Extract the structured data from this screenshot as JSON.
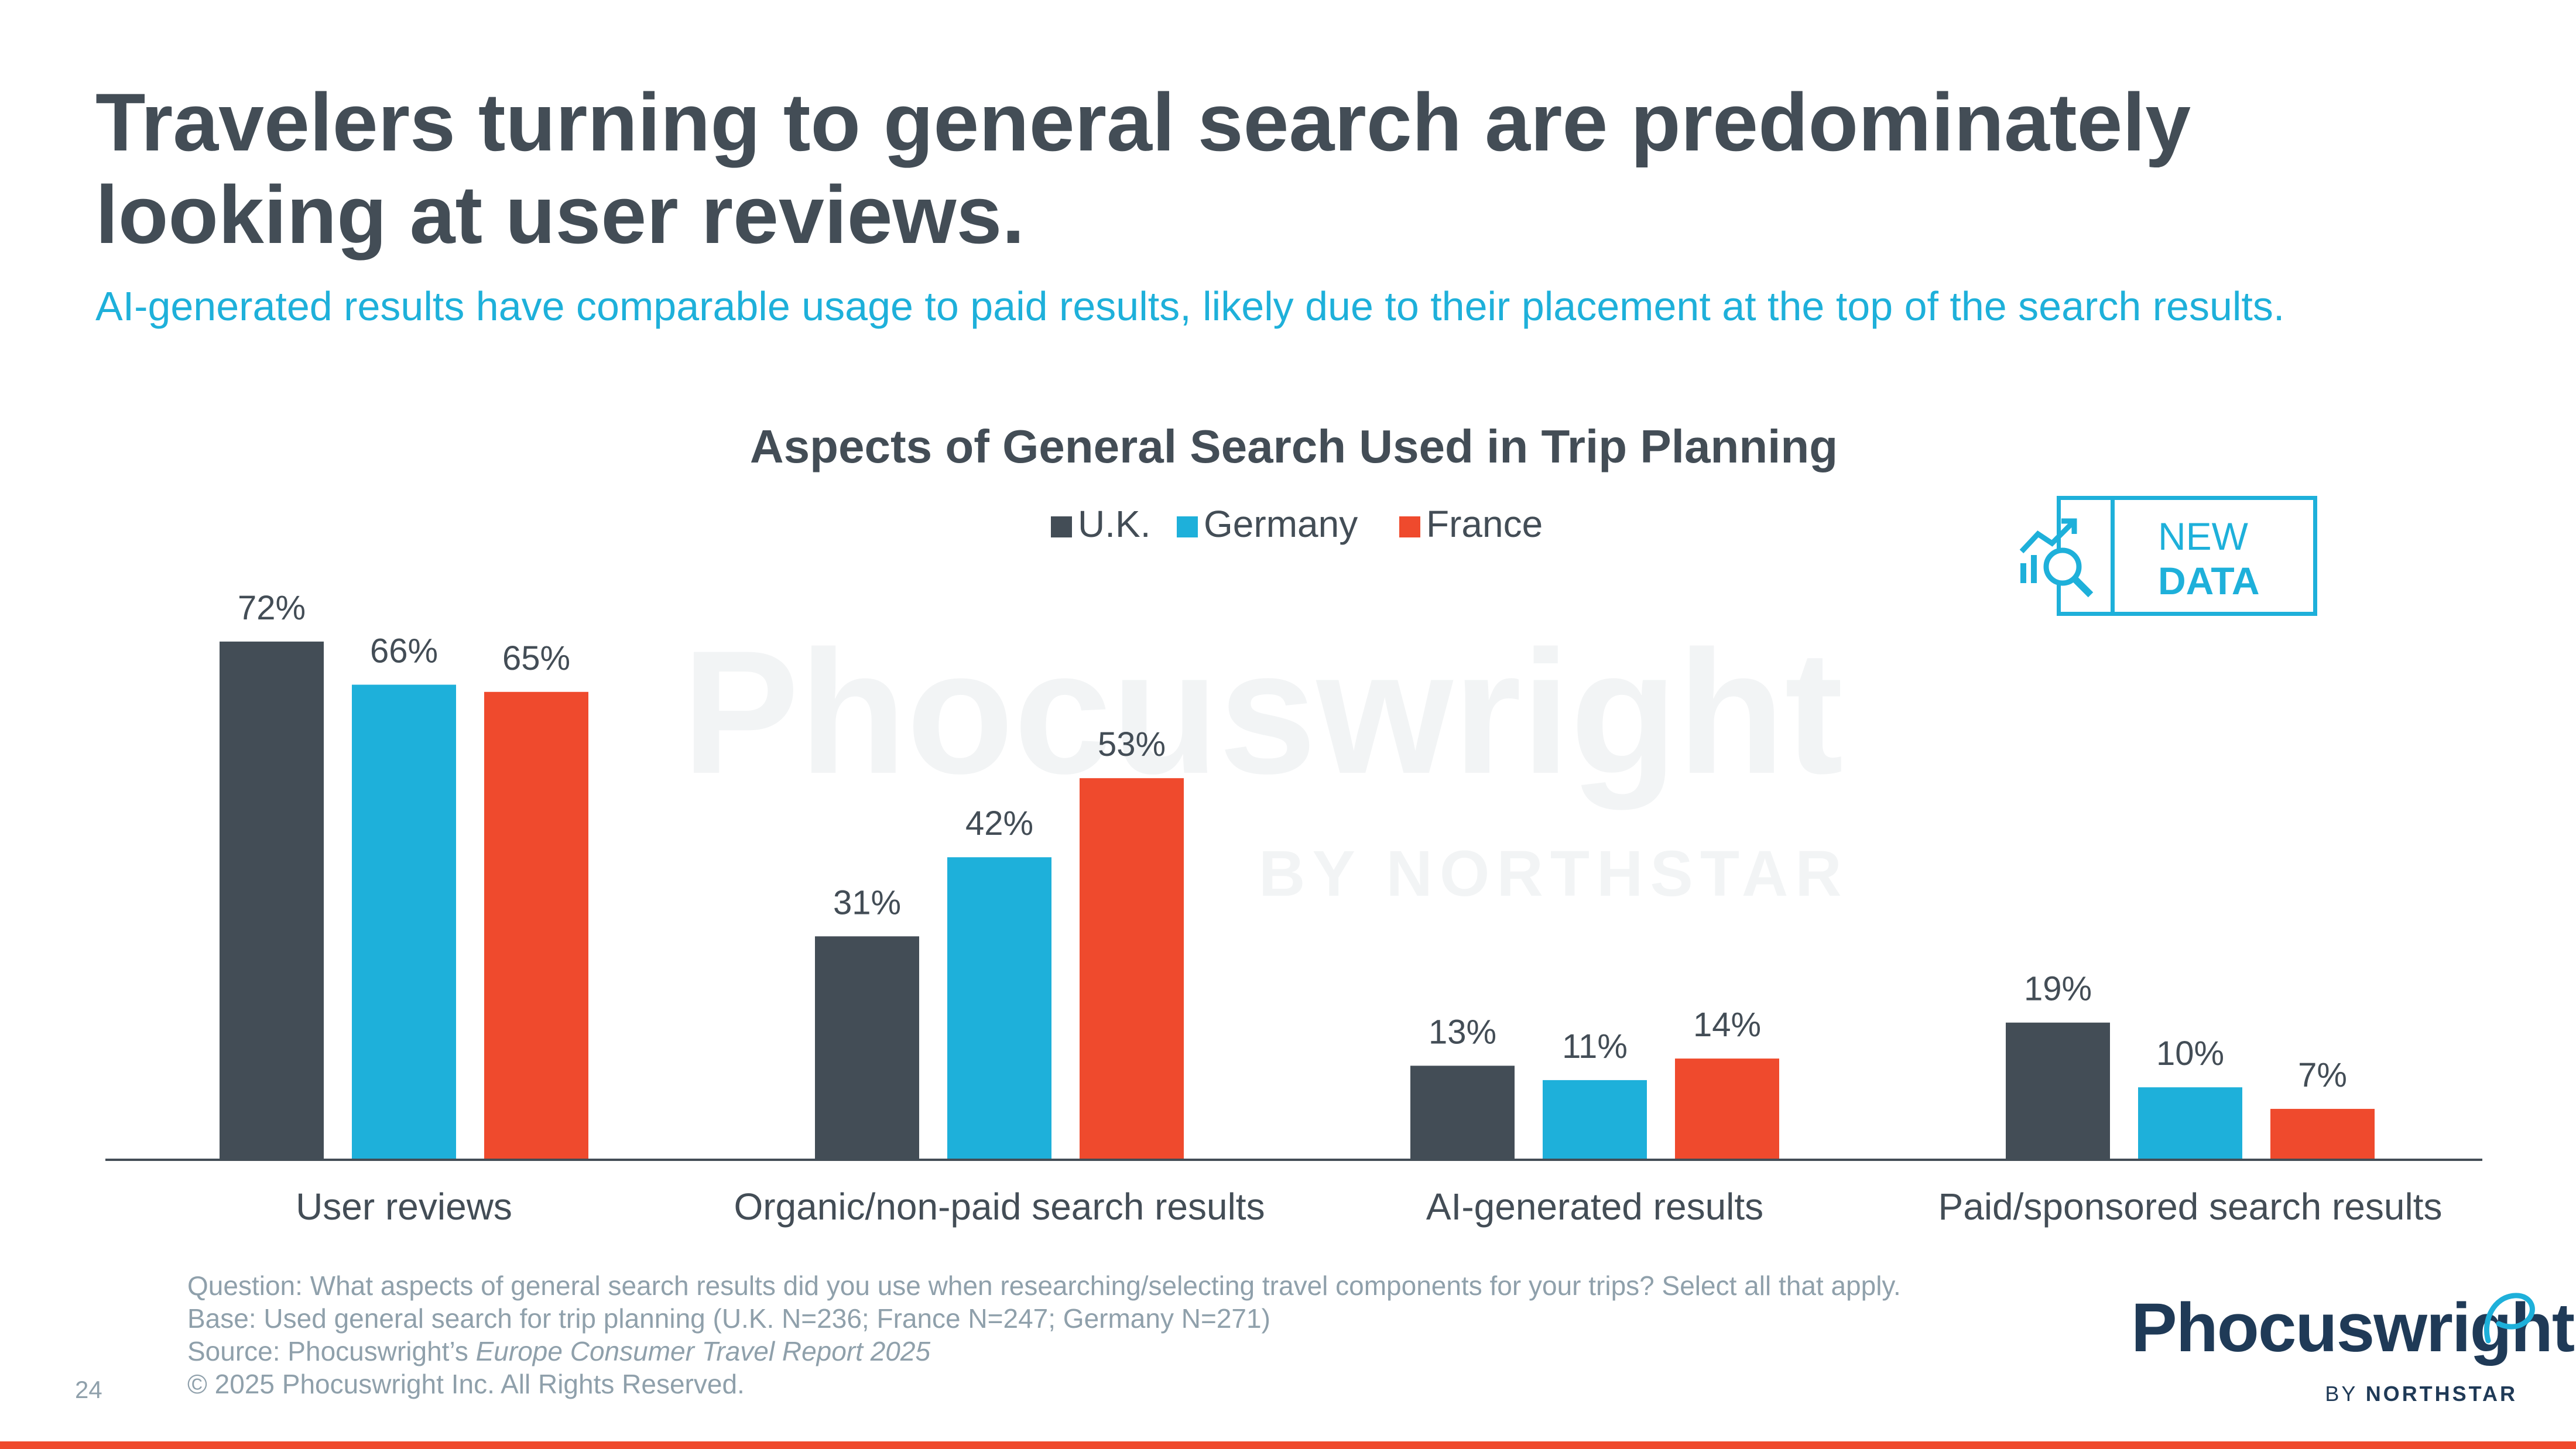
{
  "header": {
    "title": "Travelers turning to general search are predominately looking at user reviews.",
    "subtitle": "AI-generated results have comparable usage to paid results, likely due to their placement at the top of the search results."
  },
  "badge": {
    "line1": "NEW",
    "line2": "DATA",
    "icon": "chart-magnifier-icon"
  },
  "watermark": {
    "main": "Phocuswright",
    "sub": "BY NORTHSTAR"
  },
  "chart_data": {
    "type": "bar",
    "title": "Aspects of General Search Used in Trip Planning",
    "categories": [
      "User reviews",
      "Organic/non-paid search results",
      "AI-generated results",
      "Paid/sponsored search results"
    ],
    "series": [
      {
        "name": "U.K.",
        "color": "#434d56",
        "values": [
          72,
          31,
          13,
          19
        ],
        "labels": [
          "72%",
          "31%",
          "13%",
          "19%"
        ]
      },
      {
        "name": "Germany",
        "color": "#1eb0da",
        "values": [
          66,
          42,
          11,
          10
        ],
        "labels": [
          "66%",
          "42%",
          "11%",
          "10%"
        ]
      },
      {
        "name": "France",
        "color": "#ef4a2d",
        "values": [
          65,
          53,
          14,
          7
        ],
        "labels": [
          "65%",
          "53%",
          "14%",
          "7%"
        ]
      }
    ],
    "ylim": [
      0,
      80
    ],
    "grid": false,
    "legend": "top-center"
  },
  "footnotes": {
    "question": "Question: What aspects of general search results did you use when researching/selecting travel components for your trips? Select all that apply.",
    "base": "Base: Used general search for trip planning (U.K. N=236; France N=247; Germany N=271)",
    "source_prefix": "Source: Phocuswright’s ",
    "source_title": "Europe Consumer Travel Report 2025",
    "copyright": "© 2025 Phocuswright Inc. All Rights Reserved."
  },
  "page_number": "24",
  "logo": {
    "name": "Phocuswright",
    "by": "BY ",
    "brand": "NORTHSTAR"
  }
}
